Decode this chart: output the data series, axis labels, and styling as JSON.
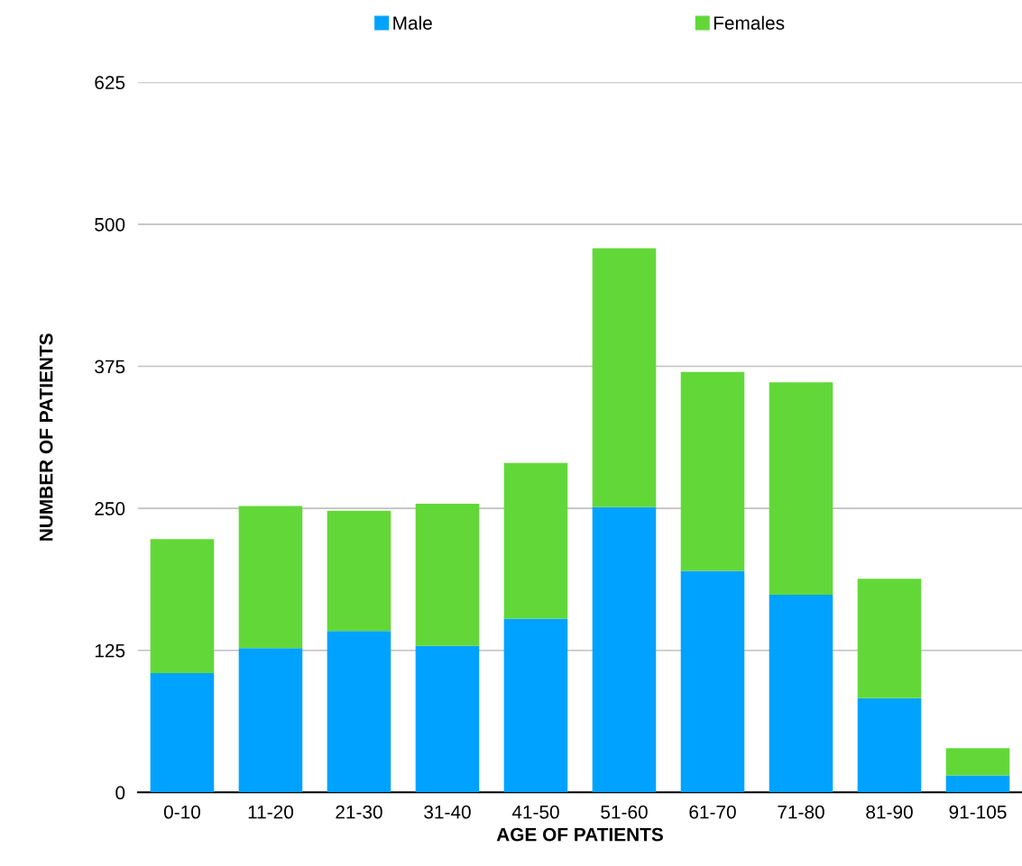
{
  "chart_data": {
    "type": "bar",
    "stacked": true,
    "xlabel": "AGE OF PATIENTS",
    "ylabel": "NUMBER OF PATIENTS",
    "categories": [
      "0-10",
      "11-20",
      "21-30",
      "31-40",
      "41-50",
      "51-60",
      "61-70",
      "71-80",
      "81-90",
      "91-105"
    ],
    "series": [
      {
        "name": "Male",
        "color": "#00a2ff",
        "values": [
          105,
          127,
          142,
          129,
          153,
          251,
          195,
          174,
          83,
          15
        ]
      },
      {
        "name": "Females",
        "color": "#62d838",
        "values": [
          118,
          125,
          106,
          125,
          137,
          228,
          175,
          187,
          105,
          24
        ]
      }
    ],
    "ylim": [
      0,
      625
    ],
    "yticks": [
      0,
      125,
      250,
      375,
      500,
      625
    ],
    "grid": "y",
    "legend": "top"
  }
}
